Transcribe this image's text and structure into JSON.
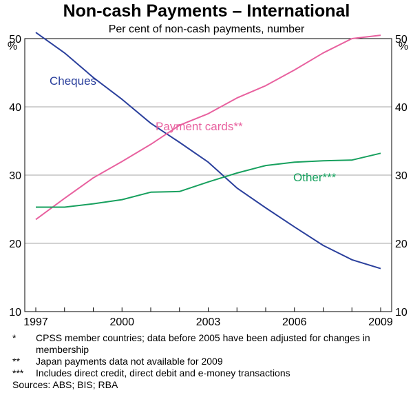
{
  "chart_data": {
    "type": "line",
    "title": "Non-cash Payments – International",
    "subtitle": "Per cent of non-cash payments, number",
    "yunit_left": "%",
    "yunit_right": "%",
    "ylim": [
      10,
      50
    ],
    "yticks": [
      10,
      20,
      30,
      40,
      50
    ],
    "xlim": [
      1997,
      2009
    ],
    "xticks": [
      1997,
      2000,
      2003,
      2006,
      2009
    ],
    "grid": true,
    "x": [
      1997,
      1998,
      1999,
      2000,
      2001,
      2002,
      2003,
      2004,
      2005,
      2006,
      2007,
      2008,
      2009
    ],
    "series": [
      {
        "name": "Cheques",
        "color": "#2a3f9c",
        "values": [
          50.9,
          47.9,
          44.3,
          41.1,
          37.6,
          34.8,
          31.9,
          28.1,
          25.2,
          22.4,
          19.7,
          17.6,
          16.3
        ]
      },
      {
        "name": "Payment cards**",
        "color": "#e8619f",
        "values": [
          23.5,
          26.6,
          29.6,
          32.0,
          34.5,
          37.3,
          39.0,
          41.3,
          43.1,
          45.4,
          47.9,
          50.0,
          50.5
        ]
      },
      {
        "name": "Other***",
        "color": "#17a05e",
        "values": [
          25.3,
          25.3,
          25.8,
          26.4,
          27.5,
          27.6,
          29.0,
          30.3,
          31.4,
          31.9,
          32.1,
          32.2,
          33.2
        ]
      }
    ]
  },
  "notes": [
    {
      "marker": "*",
      "text": "CPSS member countries; data before 2005 have been adjusted for changes in membership"
    },
    {
      "marker": "**",
      "text": "Japan payments data not available for 2009"
    },
    {
      "marker": "***",
      "text": "Includes direct credit, direct debit and e-money transactions"
    }
  ],
  "sources": "Sources: ABS; BIS; RBA"
}
